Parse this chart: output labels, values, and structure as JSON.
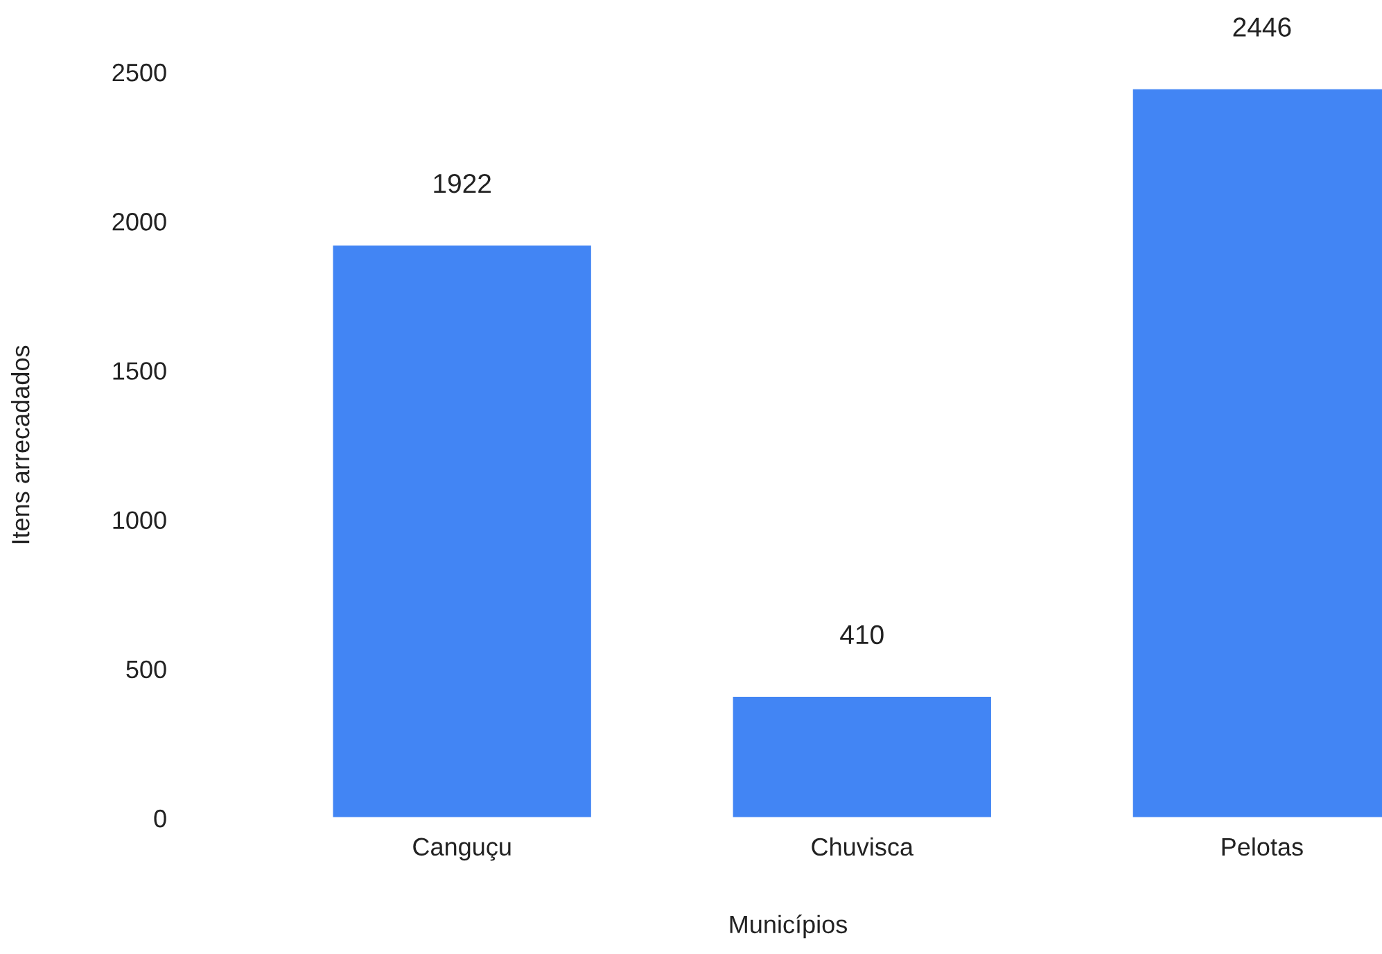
{
  "chart_data": {
    "type": "bar",
    "xlabel": "Municípios",
    "ylabel": "Itens arrecadados",
    "categories": [
      "Canguçu",
      "Chuvisca",
      "Pelotas"
    ],
    "values": [
      1922,
      410,
      2446
    ],
    "color": "#4285f4",
    "ylim": [
      0,
      2500
    ],
    "yticks": [
      0,
      500,
      1000,
      1500,
      2000,
      2500
    ],
    "data_labels": true
  }
}
